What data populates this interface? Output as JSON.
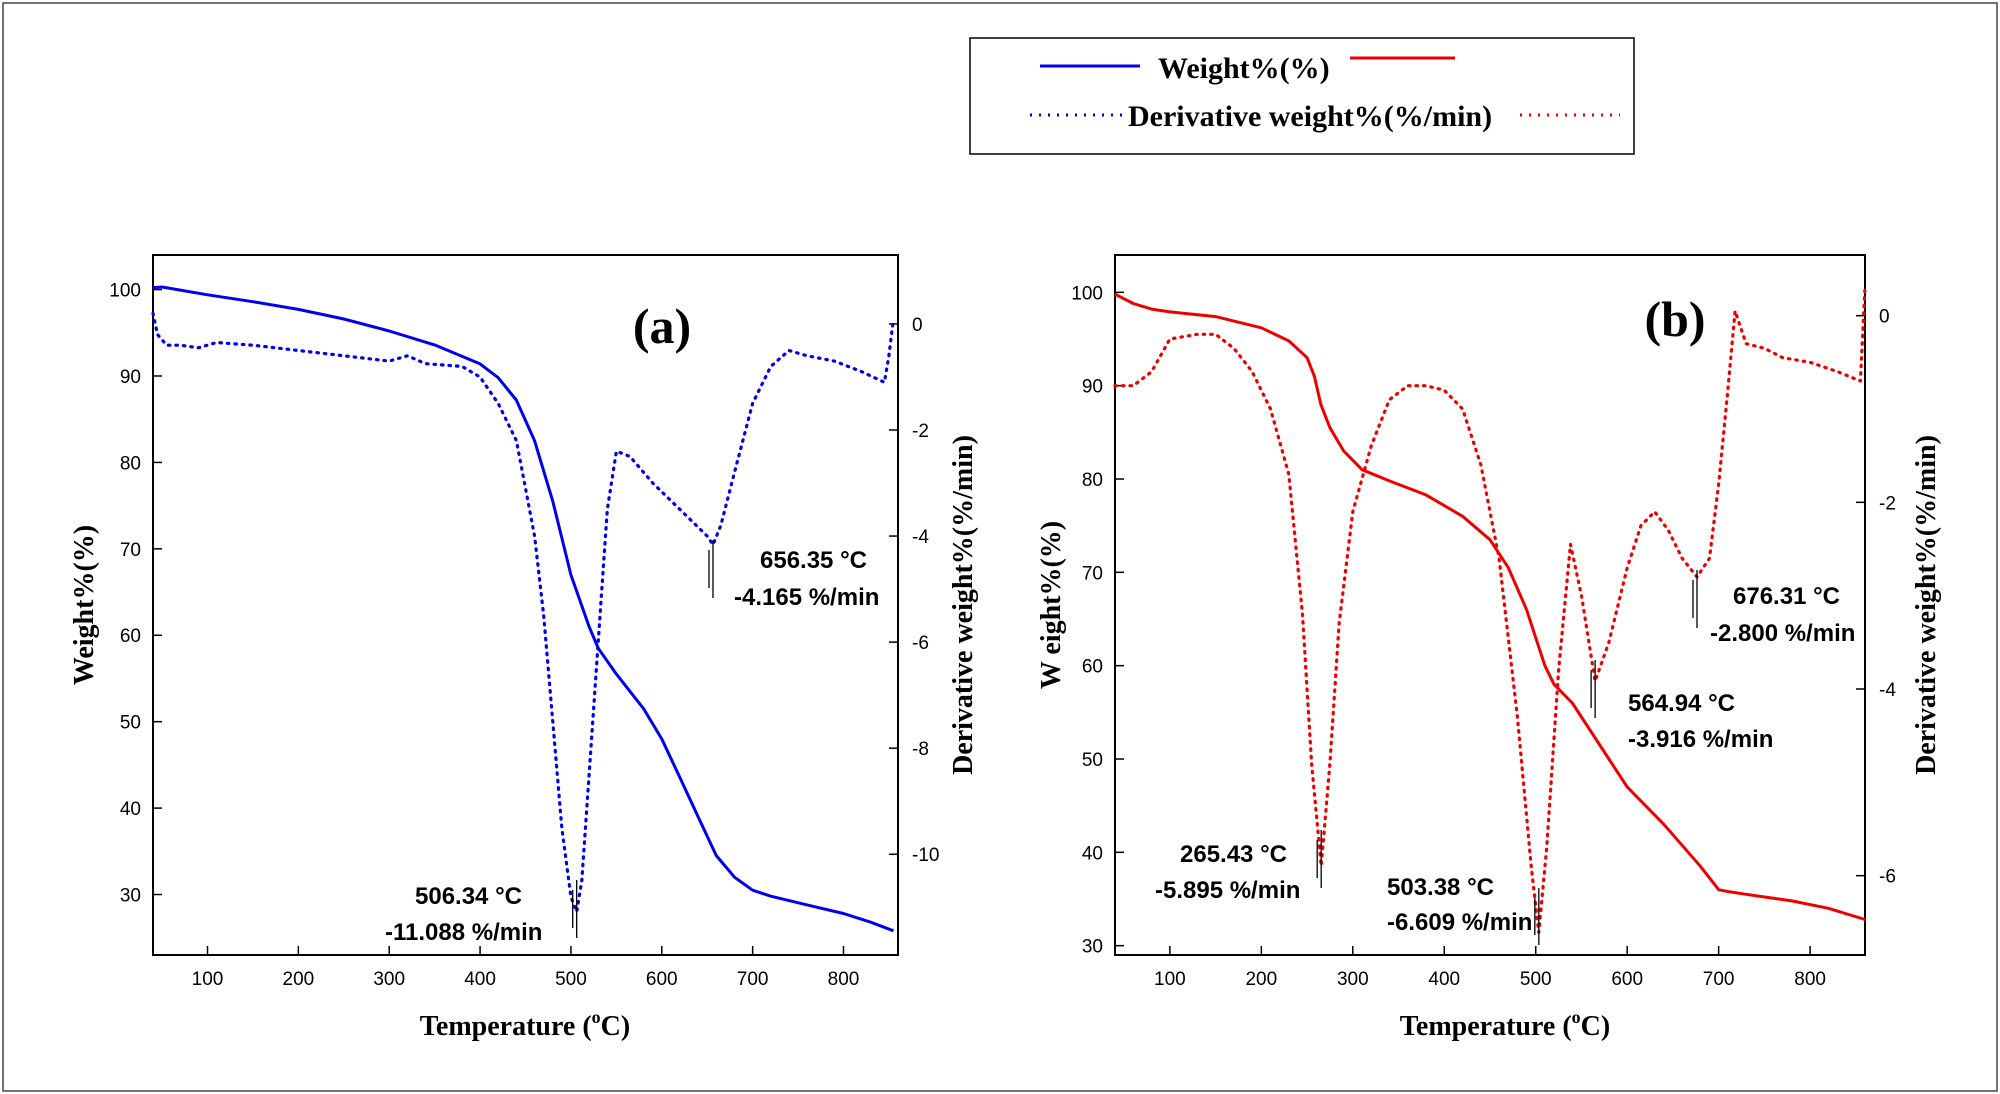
{
  "legend": {
    "weight_label": "Weight%(%)",
    "derivative_label": "Derivative weight%(%/min)"
  },
  "colors": {
    "panel_a": "#0000ee",
    "panel_b": "#ee0000"
  },
  "chart_data": [
    {
      "type": "line",
      "panel_label": "(a)",
      "xlabel_main": "Temperature (",
      "xlabel_sup": "o",
      "xlabel_end": "C)",
      "ylabel_left": "Weight%(%)",
      "ylabel_right": "Derivative weight%(%/min)",
      "xlim": [
        40,
        860
      ],
      "ylim_left": [
        23,
        104
      ],
      "ylim_right": [
        -11.9,
        1.3
      ],
      "x_ticks": [
        100,
        200,
        300,
        400,
        500,
        600,
        700,
        800
      ],
      "y_left_ticks": [
        30,
        40,
        50,
        60,
        70,
        80,
        90,
        100
      ],
      "y_right_ticks": [
        0,
        -2,
        -4,
        -6,
        -8,
        -10
      ],
      "series": [
        {
          "name": "Weight%(%)",
          "axis": "left",
          "style": "solid",
          "x": [
            40,
            50,
            100,
            150,
            200,
            250,
            300,
            350,
            400,
            420,
            440,
            460,
            480,
            500,
            520,
            530,
            550,
            580,
            600,
            620,
            640,
            660,
            680,
            700,
            720,
            760,
            800,
            830,
            855
          ],
          "y": [
            100.2,
            100.3,
            99.4,
            98.6,
            97.7,
            96.6,
            95.2,
            93.6,
            91.4,
            89.8,
            87.2,
            82.5,
            75.5,
            67.0,
            61.0,
            58.5,
            55.5,
            51.5,
            48.0,
            43.5,
            39.0,
            34.5,
            32.0,
            30.5,
            29.8,
            28.8,
            27.8,
            26.8,
            25.8
          ]
        },
        {
          "name": "Derivative weight%(%/min)",
          "axis": "right",
          "style": "dotted",
          "x": [
            40,
            45,
            55,
            70,
            90,
            110,
            150,
            200,
            250,
            300,
            320,
            340,
            380,
            400,
            420,
            440,
            460,
            470,
            480,
            490,
            500,
            506.34,
            512,
            520,
            530,
            540,
            550,
            565,
            590,
            620,
            650,
            656.35,
            665,
            680,
            700,
            720,
            740,
            760,
            790,
            820,
            845,
            850,
            855
          ],
          "y": [
            0.2,
            -0.2,
            -0.4,
            -0.4,
            -0.45,
            -0.35,
            -0.4,
            -0.5,
            -0.6,
            -0.7,
            -0.6,
            -0.75,
            -0.8,
            -1.0,
            -1.5,
            -2.2,
            -4.0,
            -5.5,
            -7.5,
            -9.5,
            -10.8,
            -11.088,
            -10.5,
            -8.5,
            -6.0,
            -3.5,
            -2.4,
            -2.5,
            -3.0,
            -3.5,
            -4.0,
            -4.165,
            -3.8,
            -2.8,
            -1.5,
            -0.8,
            -0.5,
            -0.6,
            -0.7,
            -0.9,
            -1.1,
            -0.6,
            0.1
          ]
        }
      ],
      "annotations": [
        {
          "temp_label": "506.34 °C",
          "rate_label": "-11.088 %/min",
          "x": 506.34,
          "y_right": -11.088
        },
        {
          "temp_label": "656.35 °C",
          "rate_label": "-4.165 %/min",
          "x": 656.35,
          "y_right": -4.165
        }
      ]
    },
    {
      "type": "line",
      "panel_label": "(b)",
      "xlabel_main": "Temperature (",
      "xlabel_sup": "o",
      "xlabel_end": "C)",
      "ylabel_left": "W eight%(%)",
      "ylabel_right": "Derivative weight%(%/min)",
      "xlim": [
        40,
        860
      ],
      "ylim_left": [
        29,
        104
      ],
      "ylim_right": [
        -6.85,
        0.65
      ],
      "x_ticks": [
        100,
        200,
        300,
        400,
        500,
        600,
        700,
        800
      ],
      "y_left_ticks": [
        30,
        40,
        50,
        60,
        70,
        80,
        90,
        100
      ],
      "y_right_ticks": [
        0,
        -2,
        -4,
        -6
      ],
      "series": [
        {
          "name": "Weight%(%)",
          "axis": "left",
          "style": "solid",
          "x": [
            40,
            60,
            80,
            100,
            150,
            200,
            230,
            250,
            258,
            265,
            275,
            290,
            310,
            340,
            380,
            420,
            450,
            470,
            490,
            500,
            510,
            520,
            540,
            560,
            580,
            600,
            640,
            680,
            700,
            710,
            730,
            780,
            820,
            860
          ],
          "y": [
            99.8,
            98.8,
            98.2,
            97.9,
            97.4,
            96.2,
            94.8,
            93.0,
            91.0,
            88.0,
            85.5,
            83.0,
            81.0,
            79.8,
            78.3,
            76.0,
            73.5,
            70.5,
            66.0,
            63.0,
            60.0,
            58.0,
            56.0,
            53.0,
            50.0,
            47.0,
            43.0,
            38.5,
            36.0,
            35.8,
            35.5,
            34.8,
            34.0,
            32.8
          ]
        },
        {
          "name": "Derivative weight%(%/min)",
          "axis": "right",
          "style": "dotted",
          "x": [
            40,
            60,
            80,
            100,
            130,
            150,
            170,
            190,
            210,
            230,
            245,
            255,
            265.43,
            275,
            285,
            300,
            320,
            340,
            360,
            380,
            400,
            420,
            440,
            460,
            480,
            495,
            503.38,
            512,
            525,
            538,
            550,
            564.94,
            580,
            600,
            615,
            630,
            645,
            660,
            676.31,
            690,
            700,
            710,
            718,
            730,
            750,
            770,
            800,
            830,
            855,
            860
          ],
          "y": [
            -0.75,
            -0.75,
            -0.6,
            -0.25,
            -0.2,
            -0.2,
            -0.35,
            -0.6,
            -1.0,
            -1.7,
            -3.2,
            -4.8,
            -5.895,
            -4.8,
            -3.3,
            -2.1,
            -1.4,
            -0.9,
            -0.75,
            -0.75,
            -0.8,
            -1.0,
            -1.6,
            -2.6,
            -4.3,
            -5.9,
            -6.609,
            -5.7,
            -3.8,
            -2.45,
            -3.0,
            -3.916,
            -3.5,
            -2.7,
            -2.25,
            -2.1,
            -2.3,
            -2.6,
            -2.8,
            -2.6,
            -1.8,
            -0.8,
            0.05,
            -0.3,
            -0.35,
            -0.45,
            -0.5,
            -0.6,
            -0.7,
            0.3
          ]
        }
      ],
      "annotations": [
        {
          "temp_label": "265.43 °C",
          "rate_label": "-5.895 %/min",
          "x": 265.43,
          "y_right": -5.895
        },
        {
          "temp_label": "503.38 °C",
          "rate_label": "-6.609 %/min",
          "x": 503.38,
          "y_right": -6.609
        },
        {
          "temp_label": "564.94 °C",
          "rate_label": "-3.916 %/min",
          "x": 564.94,
          "y_right": -3.916
        },
        {
          "temp_label": "676.31 °C",
          "rate_label": "-2.800 %/min",
          "x": 676.31,
          "y_right": -2.8
        }
      ]
    }
  ]
}
